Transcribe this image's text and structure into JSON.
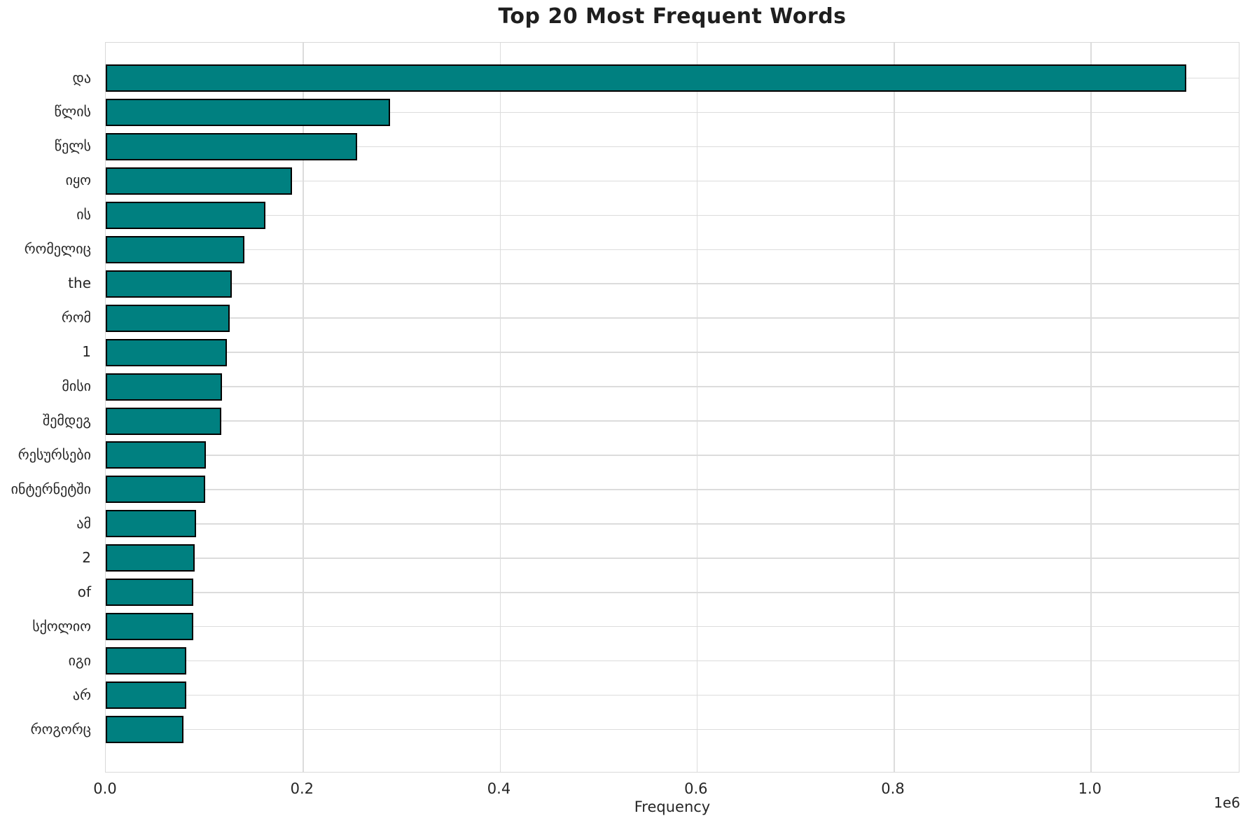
{
  "figure": {
    "title": "Top 20 Most Frequent Words",
    "xlabel": "Frequency",
    "offset_label": "1e6"
  },
  "colors": {
    "bar_fill": "#008080",
    "bar_edge": "#000000",
    "grid": "#dcdcdc",
    "text": "#262626",
    "title_text": "#1f1f1f",
    "background": "#ffffff"
  },
  "chart_data": {
    "type": "bar",
    "orientation": "horizontal",
    "title": "Top 20 Most Frequent Words",
    "xlabel": "Frequency",
    "ylabel": "",
    "categories": [
      "და",
      "წლის",
      "წელს",
      "იყო",
      "ის",
      "რომელიც",
      "the",
      "რომ",
      "1",
      "მისი",
      "შემდეგ",
      "რესურსები",
      "ინტერნეტში",
      "ამ",
      "2",
      "of",
      "სქოლიო",
      "იგი",
      "არ",
      "როგორც"
    ],
    "values": [
      1097000,
      289000,
      255000,
      189000,
      162000,
      141000,
      128000,
      126000,
      123000,
      118000,
      117000,
      102000,
      101000,
      92000,
      90000,
      89000,
      89000,
      82000,
      82000,
      79000
    ],
    "xlim": [
      0,
      1152000
    ],
    "xticks": [
      0,
      200000,
      400000,
      600000,
      800000,
      1000000
    ],
    "xtick_labels": [
      "0.0",
      "0.2",
      "0.4",
      "0.6",
      "0.8",
      "1.0"
    ],
    "x_offset_text": "1e6",
    "grid": true,
    "grid_axis": "both",
    "legend": null,
    "bar_color": "#008080",
    "bar_edge_color": "#000000"
  }
}
